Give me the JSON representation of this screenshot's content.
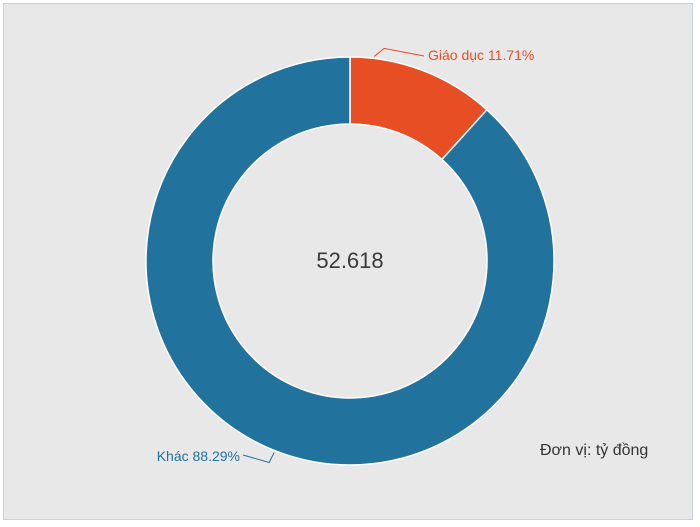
{
  "chart_data": {
    "type": "pie",
    "variant": "donut",
    "center_text": "52.618",
    "unit_note": "Đơn vị: tỷ đồng",
    "slices": [
      {
        "name": "Giáo dục",
        "value": 11.71,
        "label": "Giáo dục 11.71%",
        "color": "#e84e24"
      },
      {
        "name": "Khác",
        "value": 88.29,
        "label": "Khác 88.29%",
        "color": "#22729e"
      }
    ],
    "legend": "none"
  }
}
